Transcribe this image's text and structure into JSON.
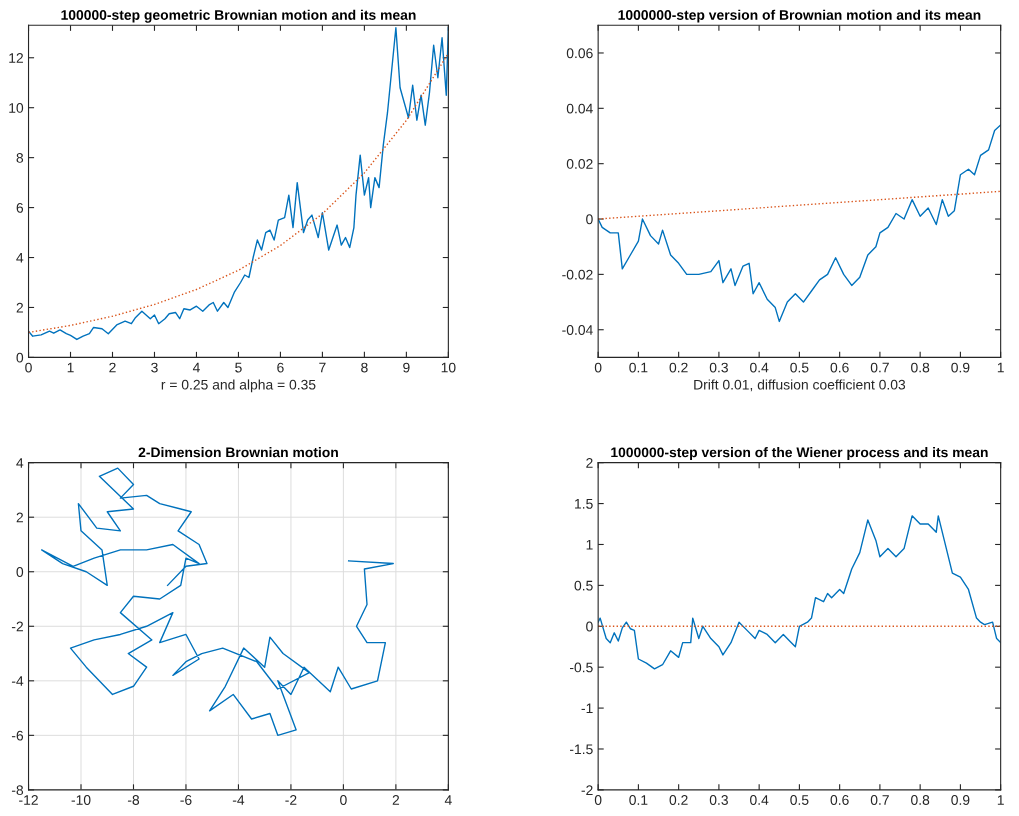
{
  "chart_data": [
    {
      "type": "line",
      "title": "100000-step geometric Brownian motion and its mean",
      "xlabel": "r = 0.25 and alpha = 0.35",
      "xlim": [
        0,
        10
      ],
      "ylim": [
        0,
        13.3
      ],
      "xticks": [
        0,
        1,
        2,
        3,
        4,
        5,
        6,
        7,
        8,
        9,
        10
      ],
      "yticks": [
        0,
        2,
        4,
        6,
        8,
        10,
        12
      ],
      "grid": false,
      "series": [
        {
          "color": "#0072bd",
          "line_style": "solid",
          "x": [
            0,
            0.1,
            0.3,
            0.5,
            0.6,
            0.75,
            0.9,
            1.0,
            1.15,
            1.3,
            1.45,
            1.55,
            1.75,
            1.9,
            2.1,
            2.3,
            2.45,
            2.55,
            2.7,
            2.9,
            3.0,
            3.1,
            3.25,
            3.35,
            3.5,
            3.6,
            3.7,
            3.85,
            4.0,
            4.15,
            4.3,
            4.4,
            4.5,
            4.65,
            4.75,
            4.9,
            5.05,
            5.15,
            5.25,
            5.35,
            5.45,
            5.55,
            5.65,
            5.75,
            5.85,
            5.95,
            6.1,
            6.2,
            6.3,
            6.4,
            6.55,
            6.65,
            6.75,
            6.9,
            7.0,
            7.15,
            7.25,
            7.35,
            7.45,
            7.55,
            7.65,
            7.75,
            7.8,
            7.9,
            8.0,
            8.1,
            8.15,
            8.25,
            8.35,
            8.45,
            8.55,
            8.65,
            8.75,
            8.85,
            8.95,
            9.05,
            9.15,
            9.25,
            9.35,
            9.45,
            9.55,
            9.65,
            9.75,
            9.85,
            9.95,
            10.0
          ],
          "values": [
            1.05,
            0.85,
            0.9,
            1.05,
            0.97,
            1.1,
            0.95,
            0.88,
            0.72,
            0.85,
            0.95,
            1.2,
            1.15,
            0.95,
            1.3,
            1.45,
            1.35,
            1.6,
            1.85,
            1.55,
            1.7,
            1.35,
            1.55,
            1.75,
            1.8,
            1.55,
            1.95,
            1.9,
            2.05,
            1.85,
            2.1,
            2.2,
            1.85,
            2.2,
            2.0,
            2.6,
            3.0,
            3.3,
            3.2,
            4.0,
            4.7,
            4.3,
            5.0,
            5.1,
            4.7,
            5.5,
            5.6,
            6.5,
            5.2,
            7.0,
            5.0,
            5.5,
            5.7,
            4.8,
            5.8,
            4.3,
            4.8,
            5.3,
            4.5,
            4.8,
            4.4,
            5.2,
            6.5,
            8.1,
            6.5,
            7.2,
            6.0,
            7.2,
            6.8,
            8.5,
            9.8,
            11.5,
            13.2,
            10.8,
            10.2,
            9.6,
            10.9,
            9.5,
            10.5,
            9.3,
            10.6,
            12.5,
            11.2,
            12.8,
            10.5,
            13.2
          ]
        },
        {
          "color": "#d95319",
          "line_style": "dotted",
          "x": [
            0,
            1,
            2,
            3,
            4,
            5,
            6,
            7,
            8,
            9,
            10
          ],
          "values": [
            1.0,
            1.28,
            1.65,
            2.12,
            2.72,
            3.49,
            4.48,
            5.75,
            7.39,
            9.49,
            12.18
          ]
        }
      ]
    },
    {
      "type": "line",
      "title": "1000000-step version of Brownian motion and its mean",
      "xlabel": "Drift 0.01, diffusion coefficient 0.03",
      "xlim": [
        0,
        1
      ],
      "ylim": [
        -0.05,
        0.07
      ],
      "xticks": [
        0,
        0.1,
        0.2,
        0.3,
        0.4,
        0.5,
        0.6,
        0.7,
        0.8,
        0.9,
        1
      ],
      "yticks": [
        -0.04,
        -0.02,
        0,
        0.02,
        0.04,
        0.06
      ],
      "grid": false,
      "series": [
        {
          "color": "#0072bd",
          "line_style": "solid",
          "x": [
            0,
            0.01,
            0.03,
            0.05,
            0.06,
            0.08,
            0.1,
            0.11,
            0.13,
            0.15,
            0.16,
            0.18,
            0.2,
            0.22,
            0.25,
            0.28,
            0.3,
            0.31,
            0.33,
            0.34,
            0.36,
            0.375,
            0.385,
            0.4,
            0.42,
            0.44,
            0.45,
            0.47,
            0.49,
            0.51,
            0.53,
            0.55,
            0.57,
            0.59,
            0.61,
            0.63,
            0.65,
            0.67,
            0.69,
            0.7,
            0.72,
            0.74,
            0.76,
            0.78,
            0.8,
            0.82,
            0.84,
            0.855,
            0.87,
            0.885,
            0.9,
            0.92,
            0.935,
            0.95,
            0.97,
            0.985,
            1.0
          ],
          "values": [
            0,
            -0.003,
            -0.005,
            -0.005,
            -0.018,
            -0.013,
            -0.008,
            0.0,
            -0.006,
            -0.009,
            -0.004,
            -0.013,
            -0.016,
            -0.02,
            -0.02,
            -0.019,
            -0.015,
            -0.023,
            -0.018,
            -0.024,
            -0.017,
            -0.016,
            -0.027,
            -0.023,
            -0.029,
            -0.032,
            -0.037,
            -0.03,
            -0.027,
            -0.03,
            -0.026,
            -0.022,
            -0.02,
            -0.014,
            -0.02,
            -0.024,
            -0.021,
            -0.013,
            -0.01,
            -0.005,
            -0.003,
            0.002,
            0.0,
            0.007,
            0.001,
            0.004,
            -0.002,
            0.007,
            0.001,
            0.003,
            0.016,
            0.018,
            0.016,
            0.023,
            0.025,
            0.032,
            0.034
          ]
        },
        {
          "color": "#d95319",
          "line_style": "dotted",
          "x": [
            0,
            1
          ],
          "values": [
            0,
            0.01
          ]
        }
      ]
    },
    {
      "type": "line",
      "title": "2-Dimension Brownian motion",
      "xlim": [
        -12,
        4
      ],
      "ylim": [
        -8,
        4
      ],
      "xticks": [
        -12,
        -10,
        -8,
        -6,
        -4,
        -2,
        0,
        2,
        4
      ],
      "yticks": [
        -8,
        -6,
        -4,
        -2,
        0,
        2,
        4
      ],
      "grid": true,
      "series": [
        {
          "color": "#0072bd",
          "line_style": "solid",
          "x": [
            0.2,
            1.9,
            0.8,
            0.9,
            0.5,
            0.9,
            1.6,
            1.3,
            0.3,
            -0.2,
            -0.5,
            -1.5,
            -2,
            -2.5,
            -1.8,
            -2.5,
            -2.8,
            -3.5,
            -4.2,
            -5.1,
            -4.5,
            -3.8,
            -3,
            -2.8,
            -2.3,
            -1.3,
            -2.5,
            -3.3,
            -4.6,
            -5.4,
            -6,
            -6.5,
            -5.5,
            -6,
            -7,
            -6.5,
            -7.5,
            -8.5,
            -9.5,
            -10.4,
            -9.8,
            -8.8,
            -8,
            -7.5,
            -8.2,
            -7.3,
            -8.5,
            -8,
            -7,
            -6.2,
            -6,
            -5.5,
            -6.5,
            -7.5,
            -8.5,
            -9.5,
            -10.3,
            -11.5,
            -10.7,
            -9.8,
            -9,
            -9.2,
            -10,
            -10.1,
            -9.4,
            -8.5,
            -9,
            -8,
            -9.3,
            -8.6,
            -8,
            -8.5,
            -7.5,
            -7,
            -6.2,
            -5.8,
            -6.3,
            -5.5,
            -5.2,
            -6,
            -6.7
          ],
          "values": [
            0.4,
            0.3,
            0.1,
            -1.2,
            -2,
            -2.6,
            -2.6,
            -4,
            -4.3,
            -3.5,
            -4.4,
            -3.5,
            -4.5,
            -4,
            -5.8,
            -6,
            -5.2,
            -5.4,
            -4.5,
            -5.1,
            -4.2,
            -2.8,
            -3.5,
            -2.4,
            -3,
            -3.7,
            -4.3,
            -3.3,
            -2.8,
            -3,
            -3.3,
            -3.8,
            -3.2,
            -2.3,
            -2.6,
            -1.5,
            -2,
            -2.3,
            -2.5,
            -2.8,
            -3.5,
            -4.5,
            -4.2,
            -3.5,
            -3,
            -2.5,
            -1.5,
            -0.9,
            -1,
            -0.5,
            0.5,
            0.3,
            1,
            0.8,
            0.8,
            0.5,
            0.2,
            0.8,
            0.3,
            0,
            -0.5,
            0.8,
            1.5,
            2.5,
            1.6,
            1.5,
            2.2,
            2.3,
            3.5,
            3.8,
            3.2,
            2.7,
            2.8,
            2.5,
            2.3,
            2.2,
            1.5,
            1,
            0.3,
            0.2,
            -0.5
          ]
        }
      ]
    },
    {
      "type": "line",
      "title": "1000000-step version of the Wiener process and its mean",
      "xlim": [
        0,
        1
      ],
      "ylim": [
        -2,
        2
      ],
      "xticks": [
        0,
        0.1,
        0.2,
        0.3,
        0.4,
        0.5,
        0.6,
        0.7,
        0.8,
        0.9,
        1
      ],
      "yticks": [
        -2,
        -1.5,
        -1,
        -0.5,
        0,
        0.5,
        1,
        1.5,
        2
      ],
      "grid": false,
      "series": [
        {
          "color": "#0072bd",
          "line_style": "solid",
          "x": [
            0,
            0.005,
            0.02,
            0.03,
            0.04,
            0.05,
            0.06,
            0.07,
            0.08,
            0.09,
            0.1,
            0.12,
            0.14,
            0.16,
            0.18,
            0.2,
            0.21,
            0.23,
            0.235,
            0.25,
            0.26,
            0.28,
            0.3,
            0.31,
            0.33,
            0.35,
            0.37,
            0.39,
            0.4,
            0.42,
            0.44,
            0.46,
            0.48,
            0.49,
            0.5,
            0.52,
            0.53,
            0.54,
            0.56,
            0.57,
            0.58,
            0.6,
            0.61,
            0.63,
            0.65,
            0.67,
            0.69,
            0.7,
            0.72,
            0.74,
            0.76,
            0.78,
            0.8,
            0.82,
            0.84,
            0.845,
            0.86,
            0.88,
            0.9,
            0.92,
            0.94,
            0.95,
            0.96,
            0.98,
            0.99,
            1.0
          ],
          "values": [
            0.05,
            0.1,
            -0.15,
            -0.2,
            -0.08,
            -0.18,
            -0.02,
            0.05,
            -0.03,
            -0.05,
            -0.4,
            -0.45,
            -0.52,
            -0.47,
            -0.3,
            -0.38,
            -0.2,
            -0.2,
            0.1,
            -0.15,
            0.0,
            -0.15,
            -0.25,
            -0.35,
            -0.2,
            0.05,
            -0.05,
            -0.15,
            -0.05,
            -0.1,
            -0.2,
            -0.1,
            -0.2,
            -0.25,
            0.0,
            0.05,
            0.1,
            0.35,
            0.3,
            0.4,
            0.35,
            0.45,
            0.4,
            0.7,
            0.9,
            1.3,
            1.05,
            0.85,
            0.95,
            0.85,
            0.95,
            1.35,
            1.25,
            1.25,
            1.15,
            1.35,
            1.05,
            0.65,
            0.6,
            0.45,
            0.1,
            0.05,
            0.02,
            0.05,
            -0.15,
            -0.2
          ]
        },
        {
          "color": "#d95319",
          "line_style": "dotted",
          "x": [
            0,
            1
          ],
          "values": [
            0,
            0
          ]
        }
      ]
    }
  ]
}
